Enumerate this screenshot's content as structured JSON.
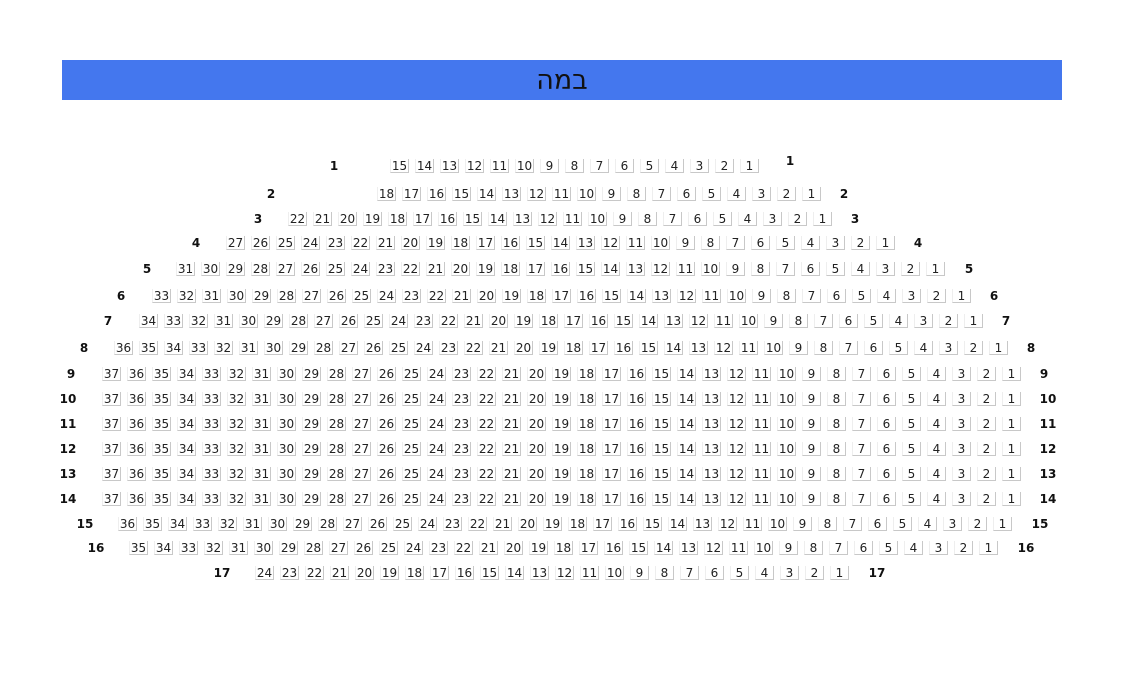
{
  "stage": {
    "label": "במה",
    "color": "#4477ee"
  },
  "rows": [
    {
      "label": "1",
      "seats": 15
    },
    {
      "label": "2",
      "seats": 18
    },
    {
      "label": "3",
      "seats": 22
    },
    {
      "label": "4",
      "seats": 27
    },
    {
      "label": "5",
      "seats": 31
    },
    {
      "label": "6",
      "seats": 33
    },
    {
      "label": "7",
      "seats": 34
    },
    {
      "label": "8",
      "seats": 36
    },
    {
      "label": "9",
      "seats": 37
    },
    {
      "label": "10",
      "seats": 37
    },
    {
      "label": "11",
      "seats": 37
    },
    {
      "label": "12",
      "seats": 37
    },
    {
      "label": "13",
      "seats": 37
    },
    {
      "label": "14",
      "seats": 37
    },
    {
      "label": "15",
      "seats": 36
    },
    {
      "label": "16",
      "seats": 35
    },
    {
      "label": "17",
      "seats": 24
    }
  ]
}
